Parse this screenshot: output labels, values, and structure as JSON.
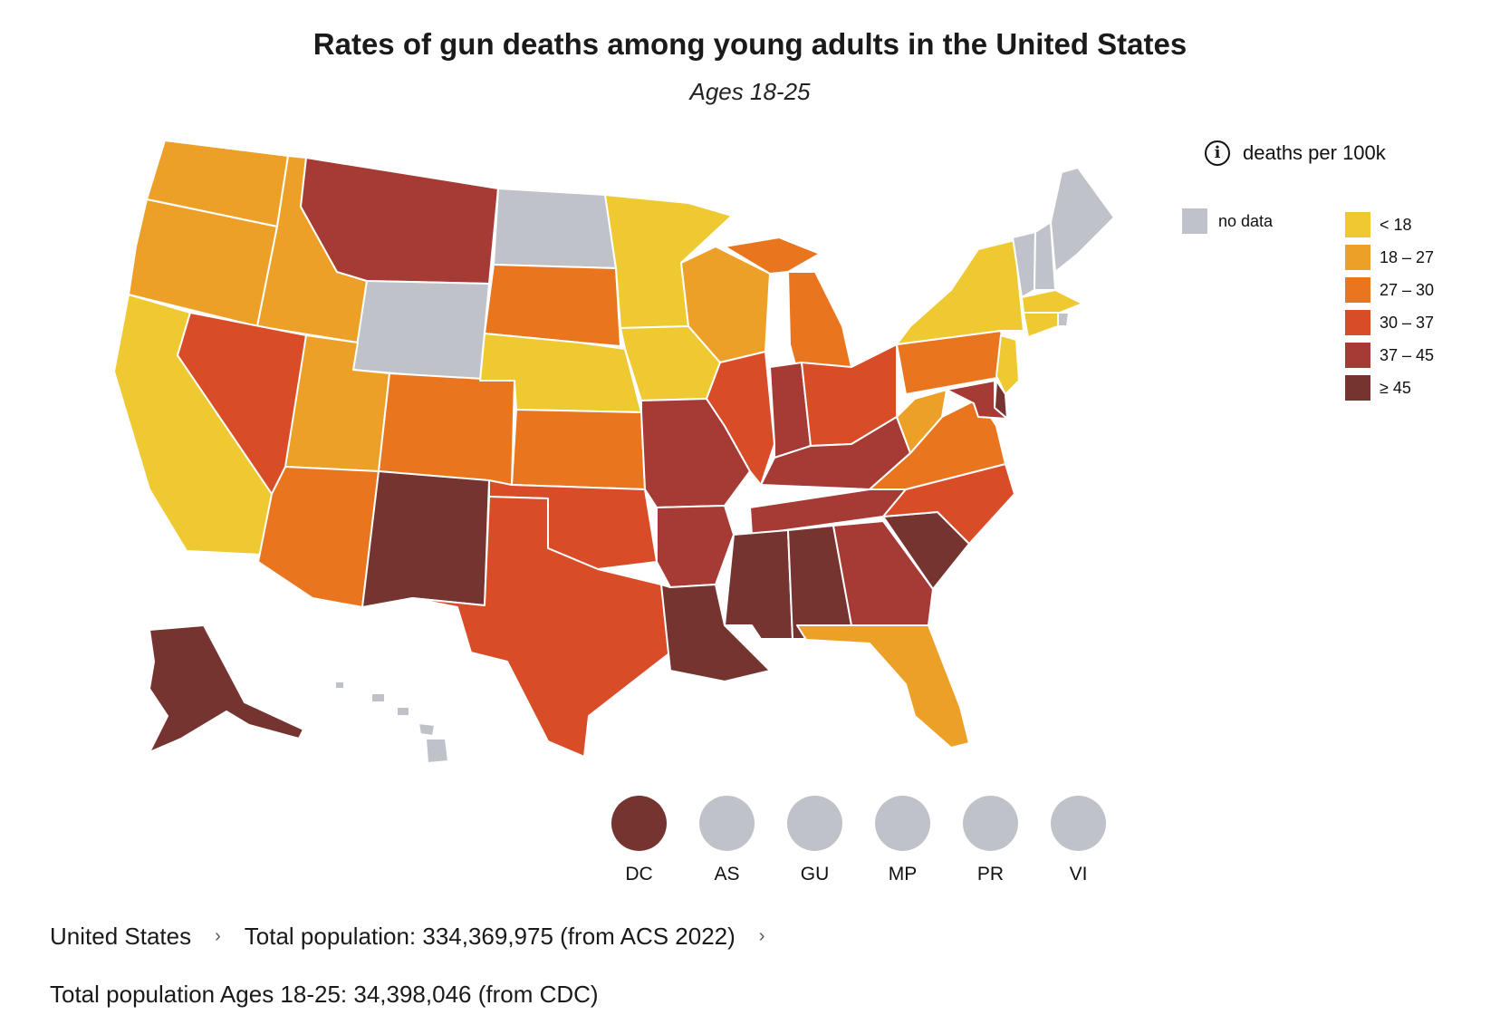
{
  "title": "Rates of gun deaths among young adults in the United States",
  "subtitle": "Ages 18-25",
  "legend": {
    "unit_label": "deaths per 100k",
    "info_icon": "info-circle-icon",
    "no_data": {
      "label": "no data",
      "color": "#BFC2C8"
    },
    "bins": [
      {
        "label": "< 18",
        "color": "#EFC932"
      },
      {
        "label": "18 – 27",
        "color": "#EDA027"
      },
      {
        "label": "27 – 30",
        "color": "#E9761F"
      },
      {
        "label": "30 – 37",
        "color": "#D84C28"
      },
      {
        "label": "37 – 45",
        "color": "#A63A35"
      },
      {
        "label": "≥ 45",
        "color": "#753430"
      }
    ]
  },
  "states": [
    {
      "code": "WA",
      "bin": 1
    },
    {
      "code": "OR",
      "bin": 1
    },
    {
      "code": "CA",
      "bin": 0
    },
    {
      "code": "ID",
      "bin": 1
    },
    {
      "code": "NV",
      "bin": 3
    },
    {
      "code": "MT",
      "bin": 4
    },
    {
      "code": "WY",
      "bin": -1
    },
    {
      "code": "UT",
      "bin": 1
    },
    {
      "code": "AZ",
      "bin": 2
    },
    {
      "code": "CO",
      "bin": 2
    },
    {
      "code": "NM",
      "bin": 5
    },
    {
      "code": "ND",
      "bin": -1
    },
    {
      "code": "SD",
      "bin": 2
    },
    {
      "code": "NE",
      "bin": 0
    },
    {
      "code": "KS",
      "bin": 2
    },
    {
      "code": "OK",
      "bin": 3
    },
    {
      "code": "TX",
      "bin": 3
    },
    {
      "code": "MN",
      "bin": 0
    },
    {
      "code": "IA",
      "bin": 0
    },
    {
      "code": "MO",
      "bin": 4
    },
    {
      "code": "AR",
      "bin": 4
    },
    {
      "code": "LA",
      "bin": 5
    },
    {
      "code": "WI",
      "bin": 1
    },
    {
      "code": "IL",
      "bin": 3
    },
    {
      "code": "MI",
      "bin": 2
    },
    {
      "code": "IN",
      "bin": 4
    },
    {
      "code": "OH",
      "bin": 3
    },
    {
      "code": "KY",
      "bin": 4
    },
    {
      "code": "TN",
      "bin": 4
    },
    {
      "code": "MS",
      "bin": 5
    },
    {
      "code": "AL",
      "bin": 5
    },
    {
      "code": "GA",
      "bin": 4
    },
    {
      "code": "FL",
      "bin": 1
    },
    {
      "code": "SC",
      "bin": 5
    },
    {
      "code": "NC",
      "bin": 3
    },
    {
      "code": "VA",
      "bin": 2
    },
    {
      "code": "WV",
      "bin": 1
    },
    {
      "code": "PA",
      "bin": 2
    },
    {
      "code": "NY",
      "bin": 0
    },
    {
      "code": "VT",
      "bin": -1
    },
    {
      "code": "NH",
      "bin": -1
    },
    {
      "code": "ME",
      "bin": -1
    },
    {
      "code": "MA",
      "bin": 0
    },
    {
      "code": "RI",
      "bin": -1
    },
    {
      "code": "CT",
      "bin": 0
    },
    {
      "code": "NJ",
      "bin": 0
    },
    {
      "code": "DE",
      "bin": 5
    },
    {
      "code": "MD",
      "bin": 4
    },
    {
      "code": "AK",
      "bin": 5
    },
    {
      "code": "HI",
      "bin": -1
    }
  ],
  "territories": [
    {
      "label": "DC",
      "bin": 5
    },
    {
      "label": "AS",
      "bin": -1
    },
    {
      "label": "GU",
      "bin": -1
    },
    {
      "label": "MP",
      "bin": -1
    },
    {
      "label": "PR",
      "bin": -1
    },
    {
      "label": "VI",
      "bin": -1
    }
  ],
  "breadcrumb": {
    "country": "United States",
    "population": "Total population: 334,369,975 (from ACS 2022)",
    "chevron_icon": "chevron-right-icon"
  },
  "footer": "Total population Ages 18-25: 34,398,046 (from CDC)"
}
